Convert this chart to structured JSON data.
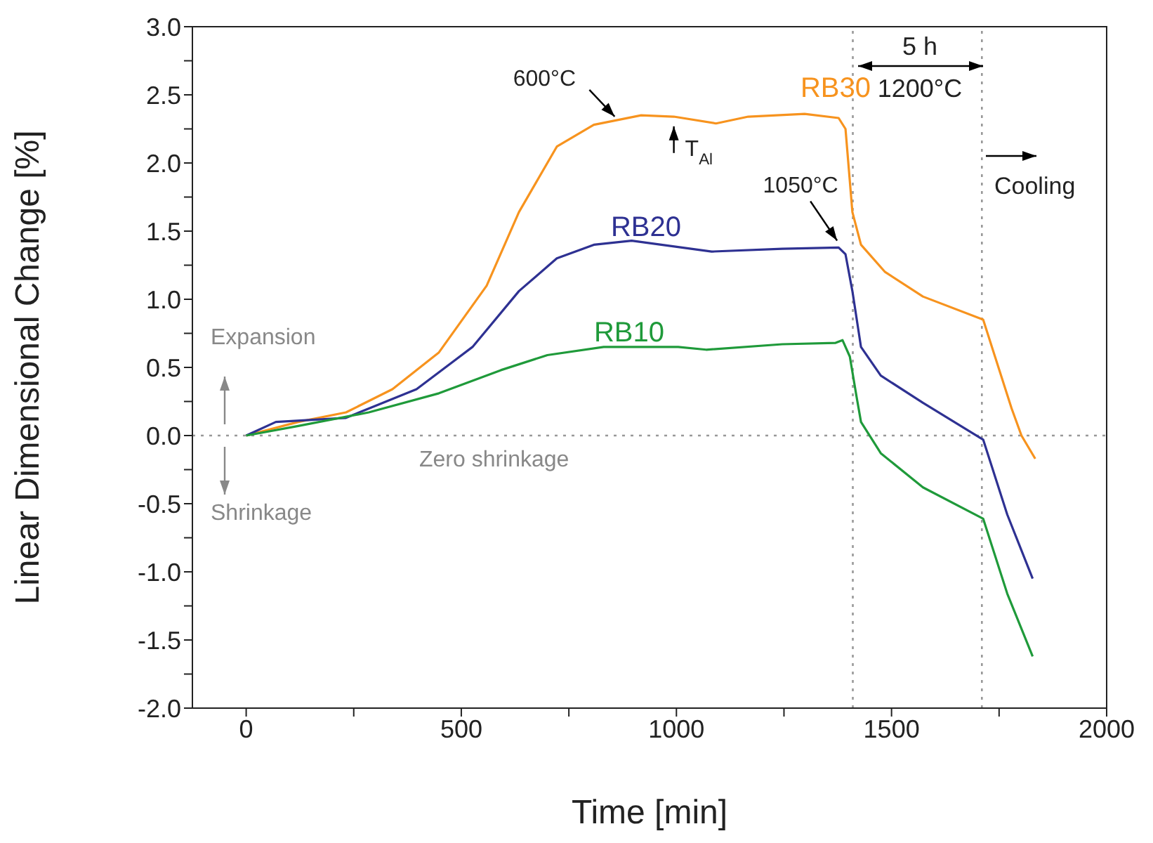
{
  "chart_data": {
    "type": "line",
    "xlabel": "Time [min]",
    "ylabel": "Linear Dimensional Change [%]",
    "xlim": [
      -125,
      2000
    ],
    "ylim": [
      -2,
      3
    ],
    "xticks": [
      0,
      {
        "value": 250,
        "label": null
      },
      500,
      {
        "value": 750,
        "label": null
      },
      1000,
      {
        "value": 1250,
        "label": null
      },
      1500,
      {
        "value": 1750,
        "label": null
      },
      2000
    ],
    "yticks": [
      {
        "value": -2,
        "label": "-2.0"
      },
      {
        "value": -1.75,
        "label": null
      },
      {
        "value": -1.5,
        "label": "-1.5"
      },
      {
        "value": -1.25,
        "label": null
      },
      {
        "value": -1,
        "label": "-1.0"
      },
      {
        "value": -0.75,
        "label": null
      },
      {
        "value": -0.5,
        "label": "-0.5"
      },
      {
        "value": -0.25,
        "label": null
      },
      {
        "value": 0,
        "label": "0.0"
      },
      {
        "value": 0.25,
        "label": null
      },
      {
        "value": 0.5,
        "label": "0.5"
      },
      {
        "value": 0.75,
        "label": null
      },
      {
        "value": 1,
        "label": "1.0"
      },
      {
        "value": 1.25,
        "label": null
      },
      {
        "value": 1.5,
        "label": "1.5"
      },
      {
        "value": 1.75,
        "label": null
      },
      {
        "value": 2,
        "label": "2.0"
      },
      {
        "value": 2.25,
        "label": null
      },
      {
        "value": 2.5,
        "label": "2.5"
      },
      {
        "value": 2.75,
        "label": null
      },
      {
        "value": 3,
        "label": "3.0"
      }
    ],
    "marker": "none",
    "line_style": "solid",
    "series": [
      {
        "name": "RB30",
        "color": "#f7931e",
        "x": [
          0,
          121,
          232,
          340,
          448,
          559,
          634,
          722,
          808,
          918,
          994,
          1092,
          1167,
          1298,
          1377,
          1393,
          1409,
          1429,
          1485,
          1573,
          1713,
          1779,
          1802,
          1834
        ],
        "values": [
          0,
          0.1,
          0.17,
          0.34,
          0.61,
          1.1,
          1.64,
          2.12,
          2.28,
          2.35,
          2.34,
          2.29,
          2.34,
          2.36,
          2.33,
          2.25,
          1.64,
          1.4,
          1.2,
          1.02,
          0.85,
          0.2,
          0,
          -0.17
        ]
      },
      {
        "name": "RB20",
        "color": "#2e3192",
        "x": [
          0,
          69,
          232,
          396,
          526,
          634,
          722,
          808,
          896,
          1082,
          1246,
          1377,
          1393,
          1409,
          1429,
          1475,
          1573,
          1713,
          1769,
          1828
        ],
        "values": [
          0,
          0.1,
          0.13,
          0.34,
          0.65,
          1.06,
          1.3,
          1.4,
          1.43,
          1.35,
          1.37,
          1.38,
          1.33,
          1.06,
          0.65,
          0.44,
          0.24,
          -0.03,
          -0.58,
          -1.05
        ]
      },
      {
        "name": "RB10",
        "color": "#1f9a3a",
        "x": [
          0,
          121,
          285,
          448,
          592,
          700,
          831,
          1004,
          1069,
          1246,
          1370,
          1386,
          1403,
          1419,
          1429,
          1475,
          1573,
          1713,
          1769,
          1828
        ],
        "values": [
          0,
          0.07,
          0.17,
          0.31,
          0.48,
          0.59,
          0.65,
          0.65,
          0.63,
          0.67,
          0.68,
          0.7,
          0.58,
          0.28,
          0.1,
          -0.13,
          -0.38,
          -0.61,
          -1.16,
          -1.62
        ]
      }
    ],
    "ref_lines": [
      {
        "axis": "y",
        "value": 0,
        "label": "Zero shrinkage",
        "color": "#999999",
        "line_style": "dotted"
      },
      {
        "axis": "x",
        "value": 1410,
        "label": null,
        "color": "#999999",
        "line_style": "dotted"
      },
      {
        "axis": "x",
        "value": 1710,
        "label": null,
        "color": "#999999",
        "line_style": "dotted"
      }
    ],
    "annotations": [
      {
        "text": "600°C",
        "x": 863,
        "y": 2.32
      },
      {
        "text": "T$_{Al}$",
        "x": 994,
        "y": 2.3
      },
      {
        "text": "1050°C",
        "x": 1380,
        "y": 1.41
      },
      "5 h",
      "1200°C",
      "Cooling",
      "Expansion",
      "Shrinkage"
    ]
  }
}
